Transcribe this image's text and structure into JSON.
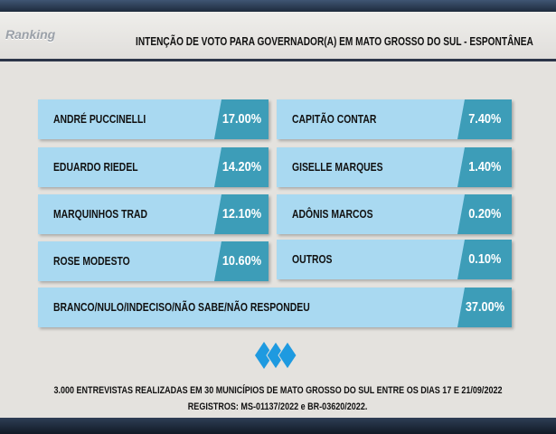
{
  "logo": "Ranking",
  "title": "INTENÇÃO DE VOTO PARA GOVERNADOR(A) EM MATO GROSSO DO SUL - ESPONTÂNEA",
  "items": [
    {
      "name": "ANDRÉ PUCCINELLI",
      "value": "17.00%"
    },
    {
      "name": "CAPITÃO CONTAR",
      "value": "7.40%"
    },
    {
      "name": "EDUARDO RIEDEL",
      "value": "14.20%"
    },
    {
      "name": "GISELLE MARQUES",
      "value": "1.40%"
    },
    {
      "name": "MARQUINHOS TRAD",
      "value": "12.10%"
    },
    {
      "name": "ADÔNIS MARCOS",
      "value": "0.20%"
    },
    {
      "name": "ROSE MODESTO",
      "value": "10.60%"
    },
    {
      "name": "OUTROS",
      "value": "0.10%"
    },
    {
      "name": "BRANCO/NULO/INDECISO/NÃO SABE/NÃO RESPONDEU",
      "value": "37.00%"
    }
  ],
  "footer": {
    "line1": "3.000 ENTREVISTAS REALIZADAS EM 30 MUNICÍPIOS DE MATO GROSSO DO SUL ENTRE OS DIAS 17 E 21/09/2022",
    "line2": "REGISTROS: MS-01137/2022 e BR-03620/2022."
  },
  "colors": {
    "box": "#a9d9f1",
    "pct": "#3d9db8",
    "icon": "#1e9ae0"
  }
}
